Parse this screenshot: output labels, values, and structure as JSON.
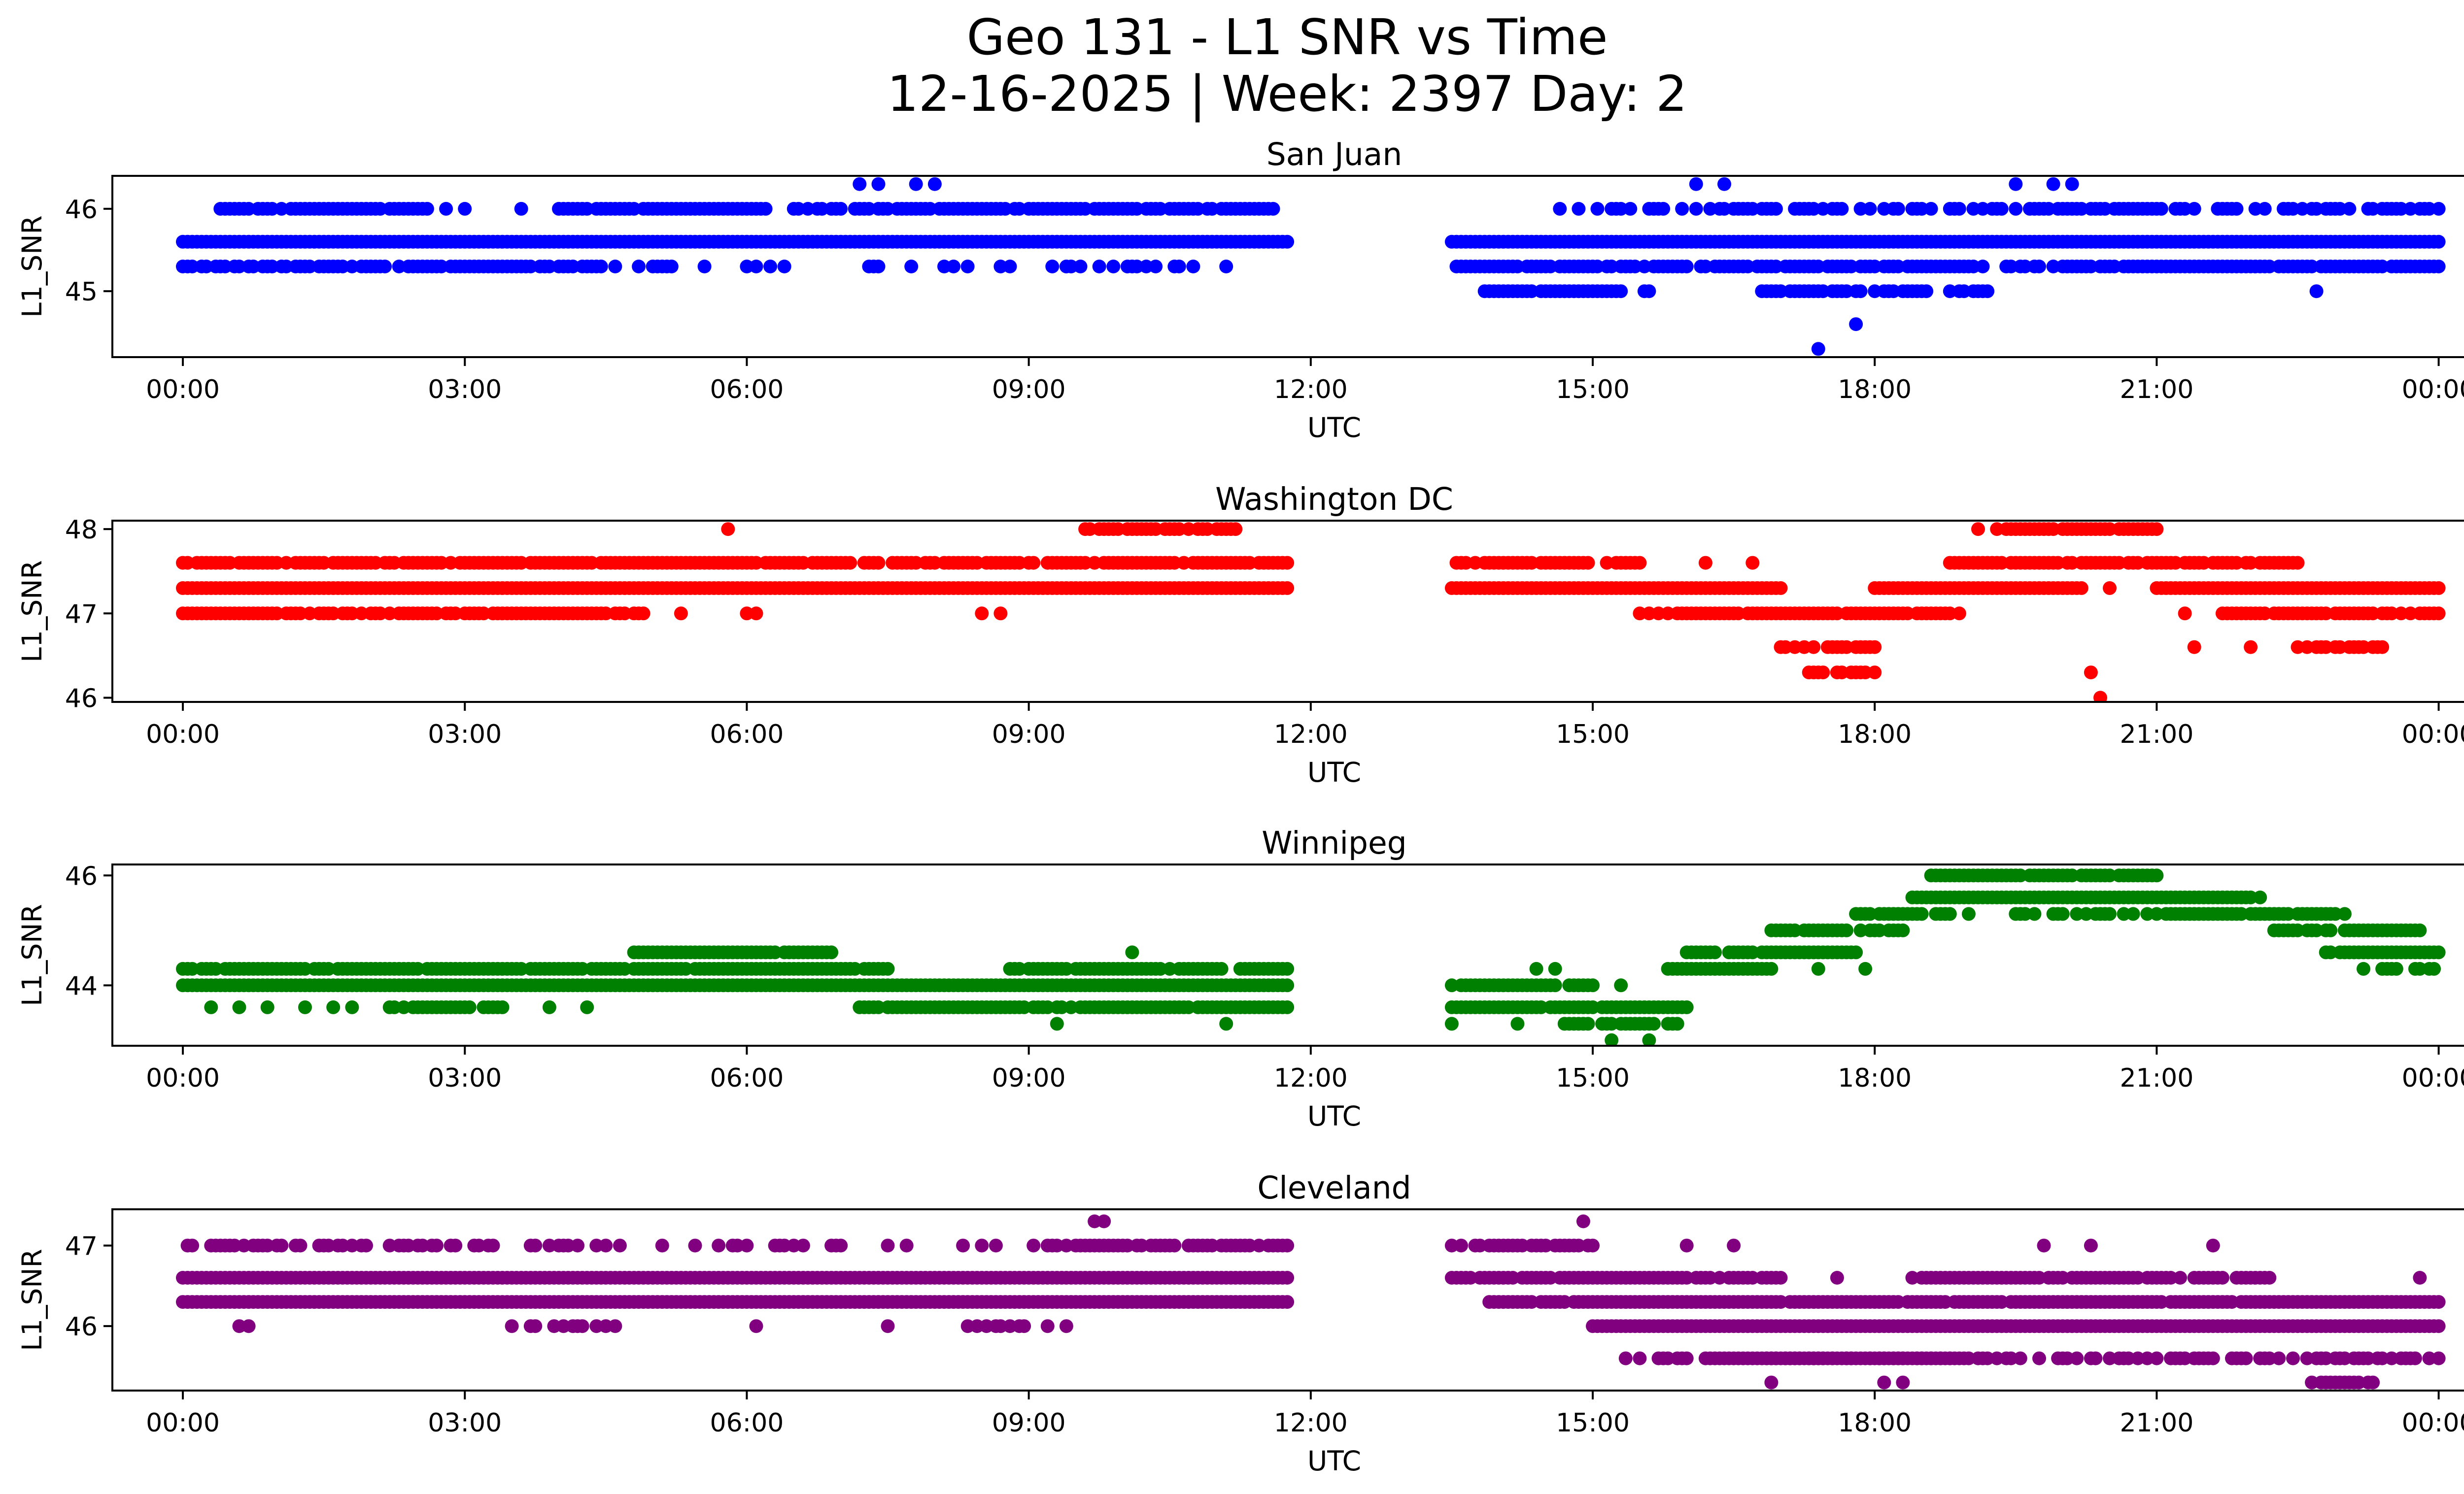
{
  "figure": {
    "title_line1": "Geo 131 - L1 SNR vs Time",
    "title_line2": "12-16-2025 | Week: 2397 Day: 2"
  },
  "chart_data": [
    {
      "type": "scatter",
      "title": "San Juan",
      "xlabel": "UTC",
      "ylabel": "L1_SNR",
      "color": "#0000ff",
      "xlim_hours": [
        -0.75,
        25.25
      ],
      "ylim": [
        44.2,
        46.4
      ],
      "xticks": [
        {
          "value": 0,
          "label": "00:00"
        },
        {
          "value": 3,
          "label": "03:00"
        },
        {
          "value": 6,
          "label": "06:00"
        },
        {
          "value": 9,
          "label": "09:00"
        },
        {
          "value": 12,
          "label": "12:00"
        },
        {
          "value": 15,
          "label": "15:00"
        },
        {
          "value": 18,
          "label": "18:00"
        },
        {
          "value": 21,
          "label": "21:00"
        },
        {
          "value": 24,
          "label": "00:00"
        }
      ],
      "yticks": [
        {
          "value": 45,
          "label": "45"
        },
        {
          "value": 46,
          "label": "46"
        }
      ],
      "bands": [
        {
          "y": 45.6,
          "ranges": [
            [
              0,
              11.75
            ],
            [
              13.5,
              24
            ]
          ],
          "density": 1.0
        },
        {
          "y": 45.3,
          "ranges": [
            [
              0,
              4.4
            ],
            [
              13.5,
              24
            ]
          ],
          "density": 0.85
        },
        {
          "y": 45.3,
          "ranges": [
            [
              4.4,
              11.75
            ]
          ],
          "density": 0.25
        },
        {
          "y": 46.0,
          "ranges": [
            [
              0.4,
              2.6
            ],
            [
              4.0,
              6.2
            ],
            [
              6.5,
              11.6
            ]
          ],
          "density": 0.9
        },
        {
          "y": 46.0,
          "ranges": [
            [
              14.5,
              24
            ]
          ],
          "density": 0.6
        },
        {
          "y": 45.0,
          "ranges": [
            [
              13.8,
              15.6
            ],
            [
              16.8,
              19.2
            ]
          ],
          "density": 0.7
        }
      ],
      "points": [
        [
          7.2,
          46.3
        ],
        [
          7.4,
          46.3
        ],
        [
          7.8,
          46.3
        ],
        [
          8.0,
          46.3
        ],
        [
          16.1,
          46.3
        ],
        [
          16.4,
          46.3
        ],
        [
          19.5,
          46.3
        ],
        [
          19.9,
          46.3
        ],
        [
          20.1,
          46.3
        ],
        [
          17.4,
          44.3
        ],
        [
          17.8,
          44.6
        ],
        [
          22.7,
          45.0
        ],
        [
          2.8,
          46.0
        ],
        [
          3.0,
          46.0
        ],
        [
          3.6,
          46.0
        ],
        [
          11.1,
          45.3
        ]
      ]
    },
    {
      "type": "scatter",
      "title": "Washington DC",
      "xlabel": "UTC",
      "ylabel": "L1_SNR",
      "color": "#ff0000",
      "xlim_hours": [
        -0.75,
        25.25
      ],
      "ylim": [
        45.95,
        48.1
      ],
      "xticks": [
        {
          "value": 0,
          "label": "00:00"
        },
        {
          "value": 3,
          "label": "03:00"
        },
        {
          "value": 6,
          "label": "06:00"
        },
        {
          "value": 9,
          "label": "09:00"
        },
        {
          "value": 12,
          "label": "12:00"
        },
        {
          "value": 15,
          "label": "15:00"
        },
        {
          "value": 18,
          "label": "18:00"
        },
        {
          "value": 21,
          "label": "21:00"
        },
        {
          "value": 24,
          "label": "00:00"
        }
      ],
      "yticks": [
        {
          "value": 46,
          "label": "46"
        },
        {
          "value": 47,
          "label": "47"
        },
        {
          "value": 48,
          "label": "48"
        }
      ],
      "bands": [
        {
          "y": 47.3,
          "ranges": [
            [
              0,
              11.75
            ],
            [
              13.5,
              17.0
            ],
            [
              18.0,
              20.2
            ],
            [
              21.0,
              24
            ]
          ],
          "density": 1.0
        },
        {
          "y": 47.6,
          "ranges": [
            [
              0,
              11.75
            ],
            [
              13.5,
              15.5
            ],
            [
              18.8,
              22.5
            ]
          ],
          "density": 0.9
        },
        {
          "y": 47.0,
          "ranges": [
            [
              0,
              5.0
            ],
            [
              15.5,
              18.9
            ],
            [
              21.7,
              24
            ]
          ],
          "density": 0.9
        },
        {
          "y": 48.0,
          "ranges": [
            [
              9.6,
              11.2
            ],
            [
              19.3,
              21.0
            ]
          ],
          "density": 0.9
        },
        {
          "y": 46.6,
          "ranges": [
            [
              17.0,
              18.0
            ],
            [
              22.5,
              23.5
            ]
          ],
          "density": 0.7
        },
        {
          "y": 46.3,
          "ranges": [
            [
              17.3,
              17.9
            ]
          ],
          "density": 0.6
        }
      ],
      "points": [
        [
          5.8,
          48.0
        ],
        [
          6.1,
          47.0
        ],
        [
          6.0,
          47.0
        ],
        [
          8.5,
          47.0
        ],
        [
          8.7,
          47.0
        ],
        [
          16.2,
          47.6
        ],
        [
          16.7,
          47.6
        ],
        [
          18.0,
          46.3
        ],
        [
          20.3,
          46.3
        ],
        [
          20.4,
          46.0
        ],
        [
          20.5,
          47.3
        ],
        [
          21.4,
          46.6
        ],
        [
          21.3,
          47.0
        ],
        [
          22.0,
          46.6
        ],
        [
          5.3,
          47.0
        ],
        [
          19.1,
          48.0
        ]
      ]
    },
    {
      "type": "scatter",
      "title": "Winnipeg",
      "xlabel": "UTC",
      "ylabel": "L1_SNR",
      "color": "#008000",
      "xlim_hours": [
        -0.75,
        25.25
      ],
      "ylim": [
        42.9,
        46.2
      ],
      "xticks": [
        {
          "value": 0,
          "label": "00:00"
        },
        {
          "value": 3,
          "label": "03:00"
        },
        {
          "value": 6,
          "label": "06:00"
        },
        {
          "value": 9,
          "label": "09:00"
        },
        {
          "value": 12,
          "label": "12:00"
        },
        {
          "value": 15,
          "label": "15:00"
        },
        {
          "value": 18,
          "label": "18:00"
        },
        {
          "value": 21,
          "label": "21:00"
        },
        {
          "value": 24,
          "label": "00:00"
        }
      ],
      "yticks": [
        {
          "value": 44,
          "label": "44"
        },
        {
          "value": 46,
          "label": "46"
        }
      ],
      "bands": [
        {
          "y": 44.0,
          "ranges": [
            [
              0,
              11.75
            ]
          ],
          "density": 1.0
        },
        {
          "y": 44.3,
          "ranges": [
            [
              0,
              7.5
            ],
            [
              8.8,
              11.75
            ]
          ],
          "density": 0.9
        },
        {
          "y": 43.6,
          "ranges": [
            [
              2.2,
              3.4
            ],
            [
              7.2,
              11.75
            ],
            [
              13.5,
              16.0
            ]
          ],
          "density": 0.9
        },
        {
          "y": 44.6,
          "ranges": [
            [
              4.8,
              6.9
            ]
          ],
          "density": 0.9
        },
        {
          "y": 44.0,
          "ranges": [
            [
              13.5,
              15.0
            ]
          ],
          "density": 0.9
        },
        {
          "y": 43.3,
          "ranges": [
            [
              14.7,
              15.9
            ]
          ],
          "density": 0.9
        },
        {
          "y": 44.3,
          "ranges": [
            [
              15.8,
              16.9
            ]
          ],
          "density": 0.9
        },
        {
          "y": 44.6,
          "ranges": [
            [
              16.0,
              17.8
            ]
          ],
          "density": 0.9
        },
        {
          "y": 45.0,
          "ranges": [
            [
              16.9,
              18.3
            ],
            [
              22.2,
              23.8
            ]
          ],
          "density": 0.9
        },
        {
          "y": 45.3,
          "ranges": [
            [
              17.8,
              18.8
            ],
            [
              21.0,
              23.0
            ]
          ],
          "density": 0.9
        },
        {
          "y": 45.6,
          "ranges": [
            [
              18.4,
              22.0
            ]
          ],
          "density": 1.0
        },
        {
          "y": 46.0,
          "ranges": [
            [
              18.6,
              21.0
            ]
          ],
          "density": 0.9
        },
        {
          "y": 45.3,
          "ranges": [
            [
              19.5,
              21.0
            ]
          ],
          "density": 0.5
        },
        {
          "y": 44.6,
          "ranges": [
            [
              22.8,
              24
            ]
          ],
          "density": 0.9
        },
        {
          "y": 44.3,
          "ranges": [
            [
              23.2,
              24
            ]
          ],
          "density": 0.6
        }
      ],
      "points": [
        [
          0.3,
          43.6
        ],
        [
          0.6,
          43.6
        ],
        [
          0.9,
          43.6
        ],
        [
          1.3,
          43.6
        ],
        [
          1.6,
          43.6
        ],
        [
          1.8,
          43.6
        ],
        [
          3.9,
          43.6
        ],
        [
          4.3,
          43.6
        ],
        [
          9.3,
          43.3
        ],
        [
          10.1,
          44.6
        ],
        [
          11.1,
          43.3
        ],
        [
          13.5,
          43.3
        ],
        [
          14.4,
          44.3
        ],
        [
          14.6,
          44.3
        ],
        [
          14.2,
          43.3
        ],
        [
          15.2,
          43.0
        ],
        [
          15.6,
          43.0
        ],
        [
          15.3,
          44.0
        ],
        [
          17.4,
          44.3
        ],
        [
          17.9,
          44.3
        ],
        [
          22.1,
          45.6
        ],
        [
          19.0,
          45.3
        ]
      ]
    },
    {
      "type": "scatter",
      "title": "Cleveland",
      "xlabel": "UTC",
      "ylabel": "L1_SNR",
      "color": "#800080",
      "xlim_hours": [
        -0.75,
        25.25
      ],
      "ylim": [
        45.2,
        47.45
      ],
      "xticks": [
        {
          "value": 0,
          "label": "00:00"
        },
        {
          "value": 3,
          "label": "03:00"
        },
        {
          "value": 6,
          "label": "06:00"
        },
        {
          "value": 9,
          "label": "09:00"
        },
        {
          "value": 12,
          "label": "12:00"
        },
        {
          "value": 15,
          "label": "15:00"
        },
        {
          "value": 18,
          "label": "18:00"
        },
        {
          "value": 21,
          "label": "21:00"
        },
        {
          "value": 24,
          "label": "00:00"
        }
      ],
      "yticks": [
        {
          "value": 46,
          "label": "46"
        },
        {
          "value": 47,
          "label": "47"
        }
      ],
      "bands": [
        {
          "y": 46.6,
          "ranges": [
            [
              0,
              11.75
            ]
          ],
          "density": 1.0
        },
        {
          "y": 46.3,
          "ranges": [
            [
              0,
              11.75
            ]
          ],
          "density": 1.0
        },
        {
          "y": 47.0,
          "ranges": [
            [
              0,
              3.3
            ]
          ],
          "density": 0.55
        },
        {
          "y": 47.0,
          "ranges": [
            [
              3.3,
              9.2
            ]
          ],
          "density": 0.3
        },
        {
          "y": 47.0,
          "ranges": [
            [
              9.2,
              11.75
            ]
          ],
          "density": 0.9
        },
        {
          "y": 46.0,
          "ranges": [
            [
              3.5,
              4.6
            ],
            [
              8.3,
              9.4
            ]
          ],
          "density": 0.5
        },
        {
          "y": 46.6,
          "ranges": [
            [
              13.5,
              17.0
            ],
            [
              18.5,
              22.2
            ]
          ],
          "density": 0.9
        },
        {
          "y": 47.0,
          "ranges": [
            [
              13.5,
              15.0
            ]
          ],
          "density": 0.9
        },
        {
          "y": 46.3,
          "ranges": [
            [
              13.9,
              24
            ]
          ],
          "density": 0.95
        },
        {
          "y": 46.0,
          "ranges": [
            [
              15.0,
              24
            ]
          ],
          "density": 1.0
        },
        {
          "y": 45.6,
          "ranges": [
            [
              15.3,
              24
            ]
          ],
          "density": 0.6
        },
        {
          "y": 45.6,
          "ranges": [
            [
              16.8,
              18.8
            ]
          ],
          "density": 1.0
        },
        {
          "y": 45.3,
          "ranges": [
            [
              22.6,
              23.3
            ]
          ],
          "density": 0.9
        }
      ],
      "points": [
        [
          9.7,
          47.3
        ],
        [
          9.8,
          47.3
        ],
        [
          14.9,
          47.3
        ],
        [
          0.6,
          46.0
        ],
        [
          0.7,
          46.0
        ],
        [
          6.1,
          46.0
        ],
        [
          7.5,
          46.0
        ],
        [
          16.5,
          47.0
        ],
        [
          16.0,
          47.0
        ],
        [
          19.8,
          47.0
        ],
        [
          20.3,
          47.0
        ],
        [
          21.6,
          47.0
        ],
        [
          23.8,
          46.6
        ],
        [
          16.9,
          45.3
        ],
        [
          18.1,
          45.3
        ],
        [
          18.3,
          45.3
        ],
        [
          17.6,
          46.6
        ],
        [
          18.4,
          46.6
        ]
      ]
    }
  ]
}
